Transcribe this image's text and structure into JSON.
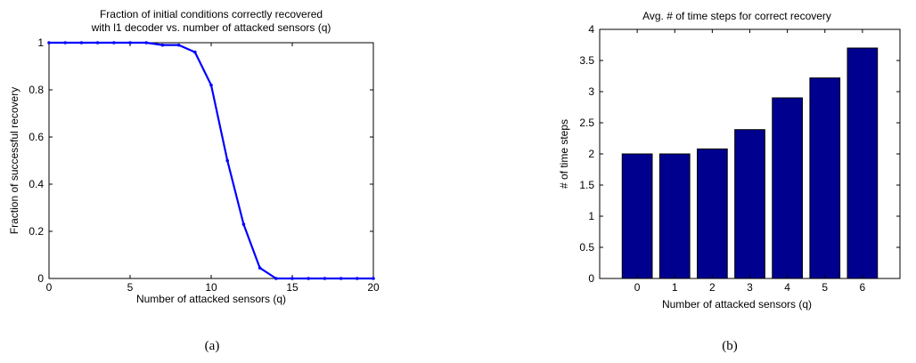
{
  "chart_data": [
    {
      "type": "line",
      "title_lines": [
        "Fraction of initial conditions correctly recovered",
        "with l1 decoder vs. number of attacked sensors (q)"
      ],
      "xlabel": "Number of attacked sensors (q)",
      "ylabel": "Fraction of successful recovery",
      "xlim": [
        0,
        20
      ],
      "ylim": [
        0,
        1
      ],
      "xticks": [
        0,
        5,
        10,
        15,
        20
      ],
      "yticks": [
        0,
        0.2,
        0.4,
        0.6,
        0.8,
        1
      ],
      "x": [
        0,
        1,
        2,
        3,
        4,
        5,
        6,
        7,
        8,
        9,
        10,
        11,
        12,
        13,
        14,
        15,
        16,
        17,
        18,
        19,
        20
      ],
      "y": [
        1,
        1,
        1,
        1,
        1,
        1,
        1,
        0.99,
        0.99,
        0.96,
        0.82,
        0.5,
        0.23,
        0.045,
        0,
        0,
        0,
        0,
        0,
        0,
        0
      ],
      "color": "#0000ff",
      "caption": "(a)"
    },
    {
      "type": "bar",
      "title": "Avg. # of time steps for correct recovery",
      "xlabel": "Number of attacked sensors (q)",
      "ylabel": "# of time steps",
      "categories": [
        "0",
        "1",
        "2",
        "3",
        "4",
        "5",
        "6"
      ],
      "values": [
        2.0,
        2.0,
        2.08,
        2.39,
        2.9,
        3.22,
        3.7
      ],
      "xlim": [
        -1,
        7
      ],
      "ylim": [
        0,
        4
      ],
      "yticks": [
        0,
        0.5,
        1,
        1.5,
        2,
        2.5,
        3,
        3.5,
        4
      ],
      "color": "#00008f",
      "caption": "(b)"
    }
  ]
}
